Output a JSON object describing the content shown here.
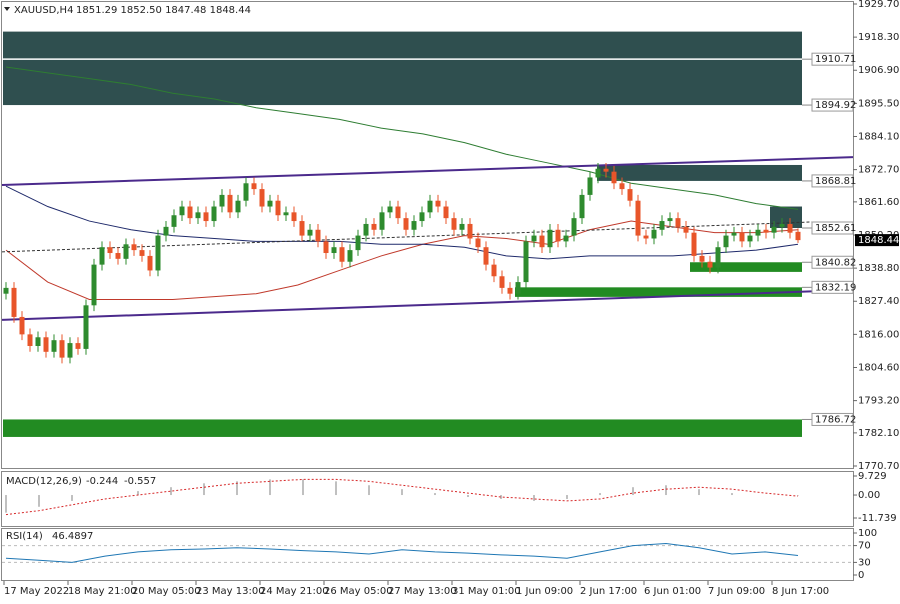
{
  "header": {
    "symbol": "XAUUSD,H4",
    "ohlc": "1851.29 1852.50 1847.48 1848.44"
  },
  "chart_data": {
    "type": "candlestick",
    "open": [
      1830,
      1832,
      1822,
      1816,
      1812,
      1815,
      1810,
      1814,
      1808,
      1813,
      1811,
      1826,
      1840,
      1846,
      1844,
      1842,
      1847,
      1845,
      1843,
      1838,
      1850,
      1853,
      1857,
      1860,
      1856,
      1858,
      1855,
      1860,
      1864,
      1858,
      1862,
      1868,
      1866,
      1860,
      1862,
      1857,
      1858,
      1855,
      1850,
      1852,
      1848,
      1844,
      1846,
      1841,
      1845,
      1850,
      1854,
      1852,
      1858,
      1860,
      1856,
      1852,
      1855,
      1858,
      1862,
      1860,
      1856,
      1852,
      1854,
      1849,
      1846,
      1840,
      1836,
      1832,
      1830,
      1834,
      1848,
      1850,
      1846,
      1852,
      1848,
      1850,
      1856,
      1864,
      1870,
      1873,
      1872,
      1868,
      1866,
      1862,
      1850,
      1849,
      1852,
      1855,
      1856,
      1853,
      1851,
      1843,
      1841,
      1839,
      1846,
      1850,
      1851,
      1848,
      1850,
      1852,
      1851,
      1853,
      1854,
      1851.29
    ],
    "high": [
      1834,
      1834,
      1824,
      1818,
      1817,
      1817,
      1816,
      1816,
      1815,
      1815,
      1828,
      1842,
      1848,
      1848,
      1846,
      1849,
      1849,
      1847,
      1845,
      1852,
      1855,
      1859,
      1862,
      1862,
      1860,
      1860,
      1862,
      1866,
      1866,
      1864,
      1870,
      1870,
      1868,
      1864,
      1864,
      1860,
      1860,
      1857,
      1854,
      1854,
      1850,
      1848,
      1848,
      1847,
      1852,
      1856,
      1856,
      1860,
      1862,
      1862,
      1858,
      1857,
      1860,
      1864,
      1864,
      1862,
      1858,
      1856,
      1856,
      1851,
      1848,
      1842,
      1838,
      1834,
      1836,
      1850,
      1852,
      1852,
      1854,
      1854,
      1852,
      1858,
      1866,
      1872,
      1875,
      1875,
      1874,
      1870,
      1868,
      1864,
      1852,
      1854,
      1857,
      1858,
      1858,
      1855,
      1853,
      1845,
      1843,
      1848,
      1852,
      1853,
      1853,
      1852,
      1854,
      1854,
      1855,
      1856,
      1856,
      1852.5
    ],
    "low": [
      1828,
      1820,
      1814,
      1810,
      1810,
      1808,
      1808,
      1806,
      1806,
      1809,
      1809,
      1824,
      1838,
      1842,
      1840,
      1840,
      1843,
      1841,
      1836,
      1836,
      1848,
      1851,
      1855,
      1854,
      1854,
      1853,
      1853,
      1858,
      1856,
      1856,
      1860,
      1864,
      1858,
      1858,
      1855,
      1855,
      1853,
      1848,
      1848,
      1846,
      1842,
      1842,
      1839,
      1839,
      1843,
      1848,
      1850,
      1850,
      1856,
      1854,
      1850,
      1850,
      1853,
      1856,
      1858,
      1854,
      1850,
      1850,
      1847,
      1844,
      1838,
      1834,
      1830,
      1828,
      1828,
      1832,
      1846,
      1844,
      1844,
      1846,
      1846,
      1848,
      1854,
      1862,
      1868,
      1870,
      1866,
      1864,
      1860,
      1848,
      1847,
      1847,
      1850,
      1853,
      1851,
      1849,
      1841,
      1839,
      1837,
      1837,
      1844,
      1848,
      1846,
      1846,
      1848,
      1849,
      1849,
      1851,
      1849,
      1847.48
    ],
    "close": [
      1832,
      1822,
      1816,
      1812,
      1815,
      1810,
      1814,
      1808,
      1813,
      1811,
      1826,
      1840,
      1846,
      1844,
      1842,
      1847,
      1845,
      1843,
      1838,
      1850,
      1853,
      1857,
      1860,
      1856,
      1858,
      1855,
      1860,
      1864,
      1858,
      1862,
      1868,
      1866,
      1860,
      1862,
      1857,
      1858,
      1855,
      1850,
      1852,
      1848,
      1844,
      1846,
      1841,
      1845,
      1850,
      1854,
      1852,
      1858,
      1860,
      1856,
      1852,
      1855,
      1858,
      1862,
      1860,
      1856,
      1852,
      1854,
      1849,
      1846,
      1840,
      1836,
      1832,
      1830,
      1834,
      1848,
      1850,
      1846,
      1852,
      1848,
      1850,
      1856,
      1864,
      1870,
      1873,
      1872,
      1868,
      1866,
      1862,
      1850,
      1849,
      1852,
      1855,
      1856,
      1853,
      1851,
      1843,
      1841,
      1839,
      1846,
      1850,
      1851,
      1848,
      1850,
      1852,
      1851,
      1853,
      1854,
      1851,
      1848.44
    ],
    "bull_color": "#2e8b2e",
    "bear_color": "#e8552a",
    "ma": [
      {
        "color": "#c0392b",
        "values": [
          1845,
          1834,
          1828,
          1828,
          1828,
          1829,
          1830,
          1833,
          1838,
          1843,
          1847,
          1850,
          1849,
          1847,
          1852,
          1855,
          1853,
          1851,
          1851,
          1852
        ]
      },
      {
        "color": "#1f2a6b",
        "values": [
          1867,
          1860,
          1855,
          1852,
          1850,
          1849,
          1848,
          1848,
          1848,
          1847,
          1847,
          1846,
          1843,
          1842,
          1843,
          1843,
          1843,
          1844,
          1845,
          1847
        ]
      },
      {
        "color": "#2e7d32",
        "values": [
          1908,
          1906,
          1904,
          1902,
          1899,
          1897,
          1894,
          1892,
          1890,
          1887,
          1885,
          1882,
          1878,
          1875,
          1872,
          1868,
          1866,
          1864,
          1861,
          1859
        ]
      }
    ],
    "zones": [
      {
        "top": 1920.2,
        "bottom": 1894.92,
        "color": "#2f4f4f"
      },
      {
        "top": 1874.3,
        "bottom": 1868.81,
        "color": "#2f4f4f"
      },
      {
        "top": 1860,
        "bottom": 1852.61,
        "color": "#2f4f4f"
      },
      {
        "top": 1840.82,
        "bottom": 1837.5,
        "color": "#228b22"
      },
      {
        "top": 1832.19,
        "bottom": 1828.9,
        "color": "#228b22"
      },
      {
        "top": 1786.72,
        "bottom": 1780.7,
        "color": "#228b22"
      }
    ],
    "levels": [
      1910.71,
      1894.92,
      1868.81,
      1852.61,
      1840.82,
      1832.19,
      1786.72
    ],
    "trendlines": [
      {
        "from": 1867.4,
        "to": 1877.0,
        "color": "#4b2a8c"
      },
      {
        "from": 1821,
        "to": 1831.3,
        "color": "#4b2a8c"
      },
      {
        "from": 1844.4,
        "to": 1854.7,
        "color": "#333333",
        "dashed": true
      }
    ],
    "ylim": [
      1770.7,
      1929.7
    ],
    "yticks": [
      {
        "value": 1929.7,
        "label": "1929.70"
      },
      {
        "value": 1918.3,
        "label": "1918.30"
      },
      {
        "value": 1906.9,
        "label": "1906.90"
      },
      {
        "value": 1895.5,
        "label": "1895.50"
      },
      {
        "value": 1884.1,
        "label": "1884.10"
      },
      {
        "value": 1872.7,
        "label": "1872.70"
      },
      {
        "value": 1861.6,
        "label": "1861.60"
      },
      {
        "value": 1850.2,
        "label": "1850.20"
      },
      {
        "value": 1838.8,
        "label": "1838.80"
      },
      {
        "value": 1827.4,
        "label": "1827.40"
      },
      {
        "value": 1816,
        "label": "1816.00"
      },
      {
        "value": 1804.6,
        "label": "1804.60"
      },
      {
        "value": 1793.2,
        "label": "1793.20"
      },
      {
        "value": 1782.1,
        "label": "1782.10"
      },
      {
        "value": 1770.7,
        "label": "1770.70"
      }
    ],
    "time_labels": [
      "17 May 2022",
      "18 May 21:00",
      "20 May 05:00",
      "23 May 13:00",
      "24 May 21:00",
      "26 May 05:00",
      "27 May 13:00",
      "31 May 01:00",
      "1 Jun 09:00",
      "2 Jun 17:00",
      "6 Jun 01:00",
      "7 Jun 09:00",
      "8 Jun 17:00"
    ],
    "macd": {
      "name": "MACD(12,26,9)",
      "histogram": [
        -9,
        -6,
        -3,
        0,
        2,
        4,
        6,
        7,
        8,
        8,
        7,
        5,
        3,
        1,
        -1,
        -2,
        -3,
        -2,
        1,
        4,
        5,
        3,
        1,
        0,
        -0.244
      ],
      "signal": [
        -10,
        -8,
        -5,
        -2,
        0,
        2,
        4,
        6,
        7,
        8,
        8,
        7,
        5,
        3,
        1,
        -1,
        -2,
        -3,
        -2,
        1,
        3,
        4,
        3,
        1,
        -0.557
      ],
      "ylim": [
        -11.739,
        9.729
      ],
      "yticks": [
        9.729,
        {
          "value": 0,
          "label": "0.00"
        },
        -11.739
      ],
      "hist_color": "#aaaaaa",
      "signal_color": "#d62728"
    },
    "rsi": {
      "name": "RSI(14)",
      "values": [
        40,
        35,
        30,
        45,
        55,
        60,
        62,
        65,
        62,
        58,
        55,
        50,
        60,
        55,
        52,
        48,
        45,
        40,
        55,
        70,
        75,
        65,
        50,
        55,
        46.4897
      ],
      "ylim": [
        0,
        100
      ],
      "yticks": [
        100,
        70,
        30,
        0
      ],
      "color": "#1f77b4"
    }
  }
}
